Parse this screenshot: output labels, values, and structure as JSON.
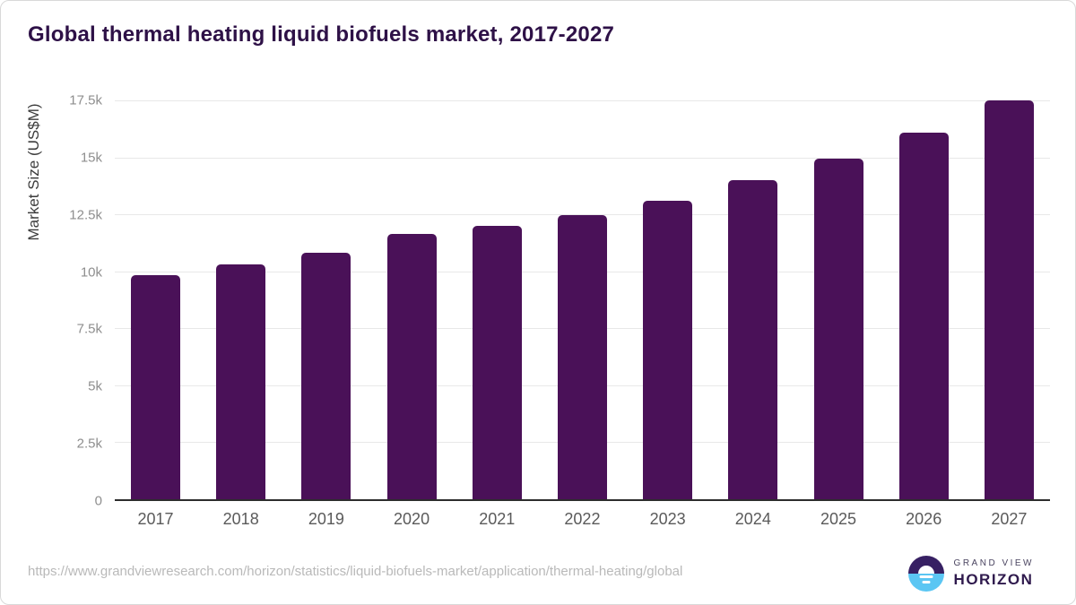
{
  "title": "Global thermal heating liquid biofuels market, 2017-2027",
  "chart_data": {
    "type": "bar",
    "title": "Global thermal heating liquid biofuels market, 2017-2027",
    "categories": [
      "2017",
      "2018",
      "2019",
      "2020",
      "2021",
      "2022",
      "2023",
      "2024",
      "2025",
      "2026",
      "2027"
    ],
    "values": [
      9850,
      10300,
      10800,
      11650,
      12000,
      12450,
      13100,
      14000,
      14950,
      16100,
      17500
    ],
    "xlabel": "",
    "ylabel": "Market Size (US$M)",
    "ylim": [
      0,
      17500
    ],
    "yticks": [
      {
        "label": "17.5k",
        "value": 17500
      },
      {
        "label": "15k",
        "value": 15000
      },
      {
        "label": "12.5k",
        "value": 12500
      },
      {
        "label": "10k",
        "value": 10000
      },
      {
        "label": "7.5k",
        "value": 7500
      },
      {
        "label": "5k",
        "value": 5000
      },
      {
        "label": "2.5k",
        "value": 2500
      },
      {
        "label": "0",
        "value": 0
      }
    ],
    "grid": "horizontal",
    "legend": "none",
    "bar_color": "#4a1158"
  },
  "colors": {
    "title": "#2e1147",
    "bar": "#4a1158",
    "gridline": "#e8e8e8",
    "axis_line": "#2d2d2d",
    "x_tick": "#5a5a5a",
    "y_tick": "#8e8e8e",
    "y_axis_title": "#3c3c3c",
    "url": "#b9b9b9",
    "logo_purple": "#372063",
    "logo_blue": "#5bc6f3"
  },
  "footer": {
    "source_url": "https://www.grandviewresearch.com/horizon/statistics/liquid-biofuels-market/application/thermal-heating/global",
    "logo": {
      "line1": "GRAND VIEW",
      "line2": "HORIZON"
    }
  }
}
